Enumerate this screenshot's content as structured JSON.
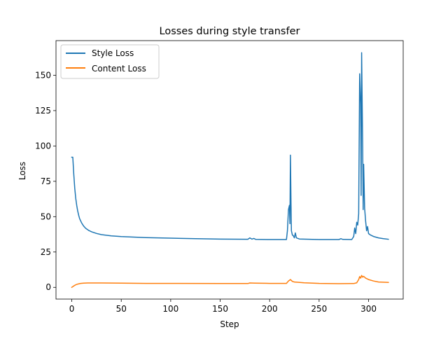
{
  "chart_data": {
    "type": "line",
    "title": "Losses during style transfer",
    "xlabel": "Step",
    "ylabel": "Loss",
    "xlim": [
      -15.95,
      335
    ],
    "ylim": [
      -8.3,
      174.5
    ],
    "xticks": [
      0,
      50,
      100,
      150,
      200,
      250,
      300
    ],
    "yticks": [
      0,
      25,
      50,
      75,
      100,
      125,
      150
    ],
    "grid": false,
    "legend_position": "upper-left",
    "series": [
      {
        "name": "Style Loss",
        "color": "#1f77b4",
        "points": [
          [
            0,
            92
          ],
          [
            1,
            92
          ],
          [
            2,
            80
          ],
          [
            3,
            70
          ],
          [
            4,
            63
          ],
          [
            5,
            58
          ],
          [
            6,
            54
          ],
          [
            7,
            51
          ],
          [
            8,
            48.5
          ],
          [
            10,
            45.5
          ],
          [
            12,
            43.3
          ],
          [
            14,
            41.8
          ],
          [
            17,
            40.3
          ],
          [
            20,
            39.3
          ],
          [
            25,
            38.1
          ],
          [
            30,
            37.3
          ],
          [
            40,
            36.4
          ],
          [
            50,
            35.9
          ],
          [
            75,
            35.2
          ],
          [
            100,
            34.8
          ],
          [
            125,
            34.4
          ],
          [
            150,
            34.1
          ],
          [
            178,
            34.0
          ],
          [
            180,
            35.0
          ],
          [
            182,
            34.1
          ],
          [
            184,
            34.6
          ],
          [
            186,
            33.9
          ],
          [
            200,
            33.8
          ],
          [
            217,
            33.8
          ],
          [
            218,
            40
          ],
          [
            219,
            55
          ],
          [
            220,
            58
          ],
          [
            220.5,
            45
          ],
          [
            221,
            93.5
          ],
          [
            221.6,
            60
          ],
          [
            222,
            40
          ],
          [
            223,
            37
          ],
          [
            224,
            36.5
          ],
          [
            225,
            35
          ],
          [
            226,
            38.5
          ],
          [
            227,
            35
          ],
          [
            230,
            34.2
          ],
          [
            250,
            33.8
          ],
          [
            270,
            33.8
          ],
          [
            272,
            34.4
          ],
          [
            274,
            33.9
          ],
          [
            283,
            33.8
          ],
          [
            285,
            36
          ],
          [
            286,
            42
          ],
          [
            287,
            38
          ],
          [
            288,
            46
          ],
          [
            289,
            44
          ],
          [
            290,
            52
          ],
          [
            291,
            151
          ],
          [
            292,
            130
          ],
          [
            292.5,
            65
          ],
          [
            293,
            166
          ],
          [
            294,
            100
          ],
          [
            294.5,
            55
          ],
          [
            295,
            87
          ],
          [
            296,
            56
          ],
          [
            297,
            47
          ],
          [
            298,
            40
          ],
          [
            299,
            43
          ],
          [
            300,
            38
          ],
          [
            302,
            37
          ],
          [
            305,
            36
          ],
          [
            310,
            35
          ],
          [
            315,
            34.4
          ],
          [
            320,
            34
          ]
        ]
      },
      {
        "name": "Content Loss",
        "color": "#ff7f0e",
        "points": [
          [
            0,
            0
          ],
          [
            2,
            1
          ],
          [
            4,
            1.8
          ],
          [
            6,
            2.3
          ],
          [
            9,
            2.8
          ],
          [
            12,
            3.0
          ],
          [
            16,
            3.1
          ],
          [
            20,
            3.1
          ],
          [
            30,
            3.1
          ],
          [
            50,
            3.0
          ],
          [
            75,
            2.8
          ],
          [
            100,
            2.8
          ],
          [
            150,
            2.7
          ],
          [
            178,
            2.7
          ],
          [
            180,
            3.1
          ],
          [
            185,
            3.0
          ],
          [
            200,
            2.8
          ],
          [
            217,
            2.8
          ],
          [
            219,
            4.5
          ],
          [
            221,
            5.5
          ],
          [
            223,
            4.2
          ],
          [
            225,
            3.8
          ],
          [
            235,
            3.2
          ],
          [
            250,
            2.8
          ],
          [
            270,
            2.6
          ],
          [
            285,
            2.7
          ],
          [
            288,
            3.2
          ],
          [
            290,
            5.5
          ],
          [
            291,
            7.6
          ],
          [
            292,
            6.5
          ],
          [
            293,
            8.4
          ],
          [
            294,
            7.2
          ],
          [
            295,
            7.8
          ],
          [
            297,
            6.5
          ],
          [
            300,
            5.5
          ],
          [
            305,
            4.5
          ],
          [
            310,
            3.8
          ],
          [
            320,
            3.5
          ]
        ]
      }
    ]
  }
}
